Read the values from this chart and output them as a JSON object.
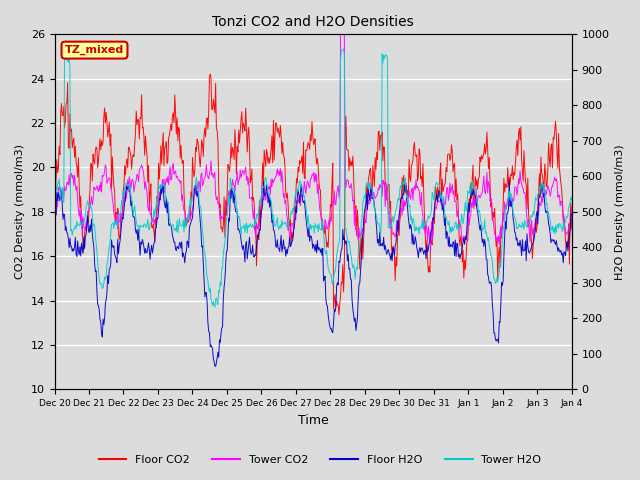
{
  "title": "Tonzi CO2 and H2O Densities",
  "xlabel": "Time",
  "ylabel_left": "CO2 Density (mmol/m3)",
  "ylabel_right": "H2O Density (mmol/m3)",
  "ylim_left": [
    10,
    26
  ],
  "ylim_right": [
    0,
    1000
  ],
  "yticks_left": [
    10,
    12,
    14,
    16,
    18,
    20,
    22,
    24,
    26
  ],
  "yticks_right": [
    0,
    100,
    200,
    300,
    400,
    500,
    600,
    700,
    800,
    900,
    1000
  ],
  "xtick_labels": [
    "Dec 20",
    "Dec 21",
    "Dec 22",
    "Dec 23",
    "Dec 24",
    "Dec 25",
    "Dec 26",
    "Dec 27",
    "Dec 28",
    "Dec 29",
    "Dec 30",
    "Dec 31",
    "Jan 1",
    "Jan 2",
    "Jan 3",
    "Jan 4"
  ],
  "n_points": 672,
  "annotation_text": "TZ_mixed",
  "annotation_color": "#cc0000",
  "annotation_bg": "#ffff99",
  "annotation_border": "#cc0000",
  "floor_co2_color": "#ff0000",
  "tower_co2_color": "#ff00ff",
  "floor_h2o_color": "#0000cc",
  "tower_h2o_color": "#00cccc",
  "plot_bg_color": "#dcdcdc",
  "fig_bg_color": "#dcdcdc",
  "legend_labels": [
    "Floor CO2",
    "Tower CO2",
    "Floor H2O",
    "Tower H2O"
  ],
  "seed": 42
}
